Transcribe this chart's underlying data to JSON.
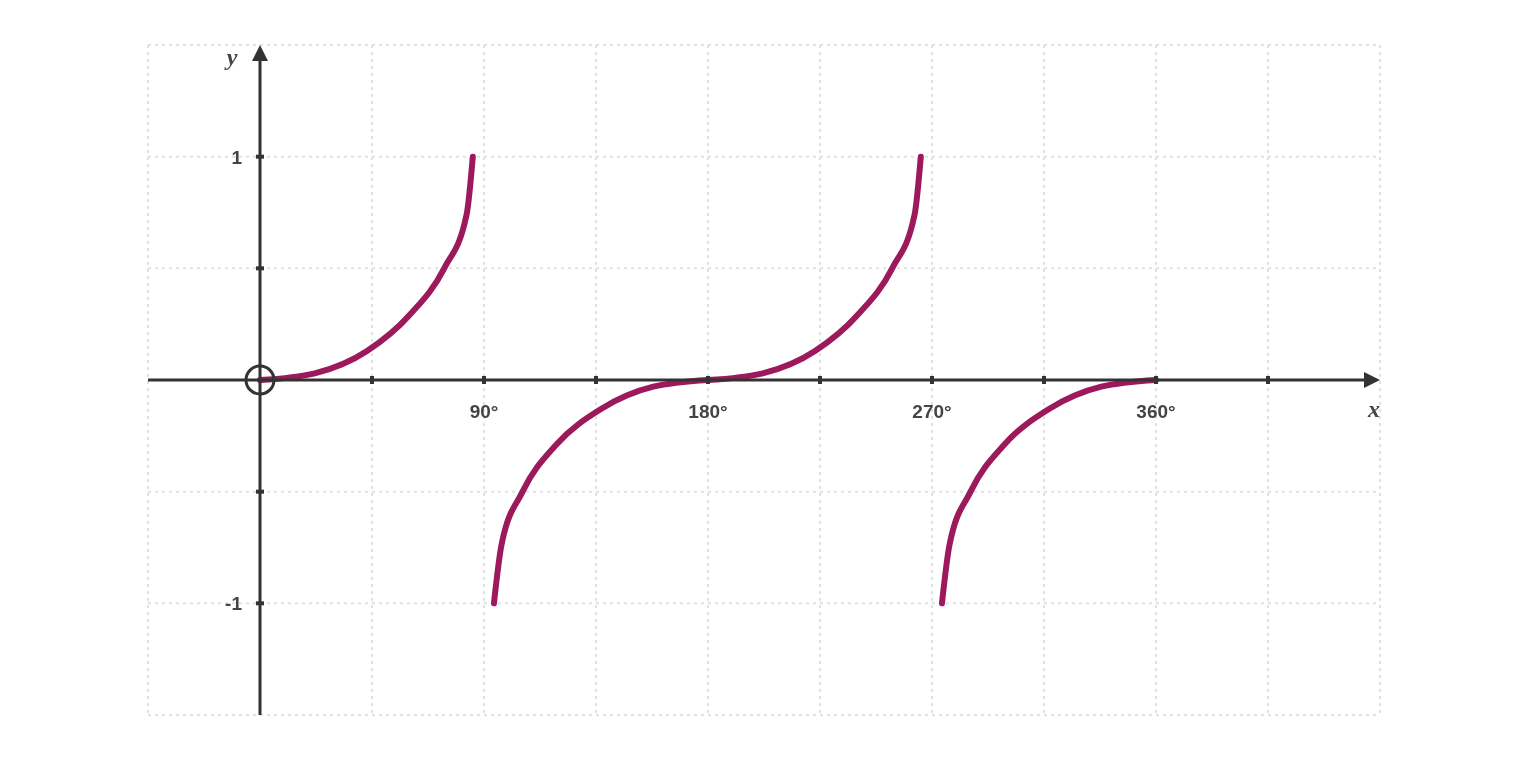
{
  "chart_data": {
    "type": "line",
    "xlabel": "x",
    "ylabel": "y",
    "xlim": [
      -45,
      450
    ],
    "ylim": [
      -1.5,
      1.5
    ],
    "xticks": [
      {
        "value": 45,
        "label": null
      },
      {
        "value": 90,
        "label": "90°"
      },
      {
        "value": 135,
        "label": null
      },
      {
        "value": 180,
        "label": "180°"
      },
      {
        "value": 225,
        "label": null
      },
      {
        "value": 270,
        "label": "270°"
      },
      {
        "value": 315,
        "label": null
      },
      {
        "value": 360,
        "label": "360°"
      },
      {
        "value": 405,
        "label": null
      }
    ],
    "yticks": [
      -1,
      {
        "value": -0.5,
        "label": null
      },
      {
        "value": 0.5,
        "label": null
      },
      1
    ],
    "grid": true,
    "marker": "none",
    "line_style": "solid",
    "series": [
      {
        "color": "#9c1a5c",
        "x": [
          0,
          22,
          43,
          60,
          74,
          83,
          85.5
        ],
        "values": [
          0,
          0.03,
          0.13,
          0.29,
          0.5,
          0.74,
          1
        ]
      },
      {
        "color": "#9c1a5c",
        "x": [
          94,
          97,
          105.5,
          119,
          137,
          158,
          180
        ],
        "values": [
          -1,
          -0.74,
          -0.5,
          -0.29,
          -0.13,
          -0.03,
          0
        ]
      },
      {
        "color": "#9c1a5c",
        "x": [
          180,
          202,
          223,
          240,
          254,
          263,
          265.5
        ],
        "values": [
          0,
          0.03,
          0.13,
          0.29,
          0.5,
          0.74,
          1
        ]
      },
      {
        "color": "#9c1a5c",
        "x": [
          274,
          277,
          285.5,
          299,
          317,
          338,
          360
        ],
        "values": [
          -1,
          -0.74,
          -0.5,
          -0.29,
          -0.13,
          -0.03,
          0
        ]
      }
    ]
  }
}
